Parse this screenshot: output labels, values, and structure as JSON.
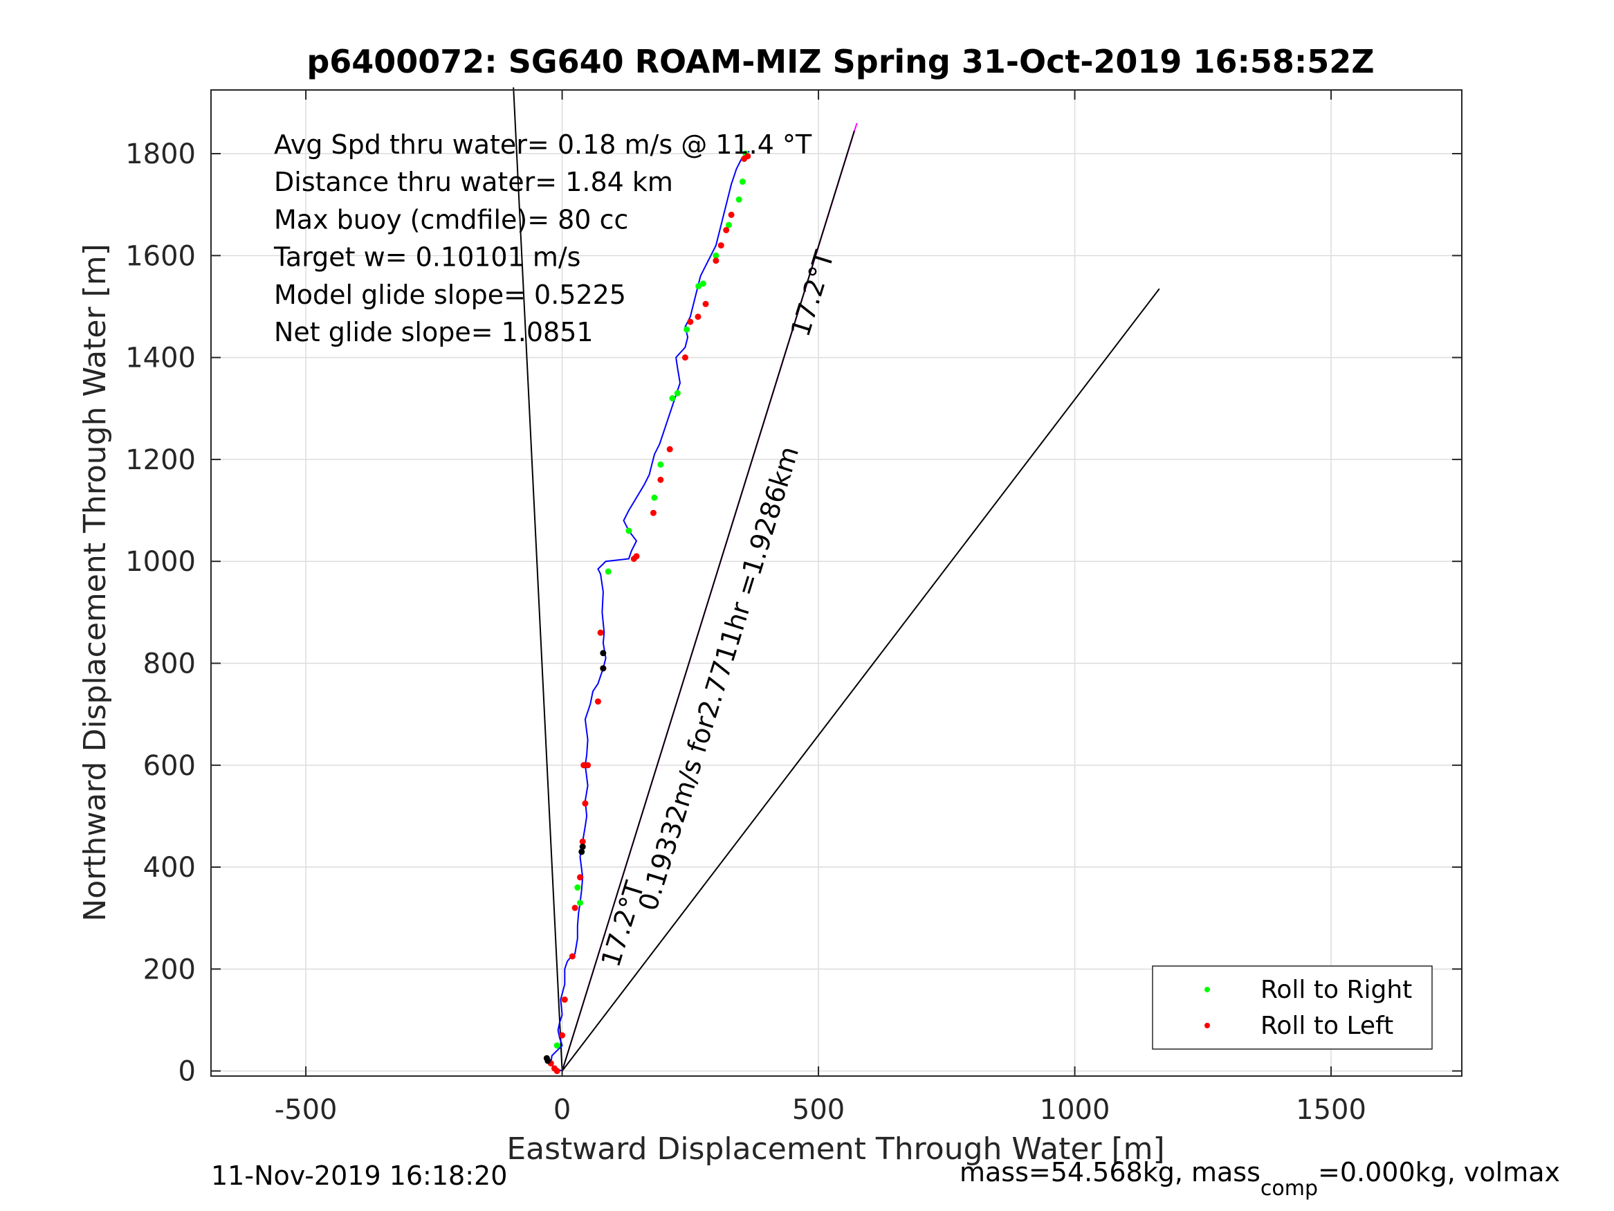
{
  "chart_data": {
    "type": "line",
    "title": "p6400072: SG640 ROAM-MIZ Spring 31-Oct-2019 16:58:52Z",
    "xlabel": "Eastward Displacement Through Water [m]",
    "ylabel": "Northward Displacement Through Water [m]",
    "xlim": [
      -685,
      1755
    ],
    "ylim": [
      -10,
      1925
    ],
    "xticks": [
      -500,
      0,
      500,
      1000,
      1500
    ],
    "yticks": [
      0,
      200,
      400,
      600,
      800,
      1000,
      1200,
      1400,
      1600,
      1800
    ],
    "grid": true,
    "stats": [
      "Avg Spd thru water=  0.18 m/s @  11.4 °T",
      "Distance thru water=  1.84 km",
      "Max buoy (cmdfile)= 80 cc",
      "Target w= 0.10101 m/s",
      "Model glide slope= 0.5225",
      "Net glide slope= 1.0851"
    ],
    "track": {
      "color": "#0000ff",
      "x": [
        0,
        -15,
        -22,
        -20,
        -10,
        0,
        -5,
        -8,
        -5,
        0,
        -3,
        5,
        5,
        10,
        18,
        25,
        30,
        30,
        32,
        35,
        38,
        40,
        35,
        40,
        45,
        48,
        45,
        50,
        45,
        48,
        50,
        45,
        55,
        60,
        70,
        75,
        80,
        85,
        80,
        82,
        78,
        80,
        75,
        70,
        75,
        80,
        85,
        130,
        135,
        145,
        130,
        120,
        130,
        145,
        160,
        170,
        175,
        180,
        190,
        200,
        210,
        220,
        230,
        225,
        222,
        240,
        245,
        240,
        250,
        255,
        260,
        265,
        270,
        280,
        290,
        300,
        305,
        310,
        315,
        320,
        325,
        330,
        335,
        340,
        345,
        350,
        355,
        360,
        365
      ],
      "y": [
        0,
        5,
        15,
        30,
        40,
        50,
        65,
        80,
        95,
        110,
        140,
        170,
        200,
        215,
        225,
        230,
        260,
        285,
        310,
        330,
        355,
        380,
        420,
        450,
        480,
        500,
        530,
        560,
        600,
        620,
        650,
        690,
        720,
        745,
        760,
        775,
        790,
        810,
        840,
        860,
        900,
        940,
        975,
        985,
        990,
        995,
        1000,
        1005,
        1020,
        1040,
        1060,
        1080,
        1100,
        1125,
        1150,
        1170,
        1190,
        1210,
        1230,
        1260,
        1290,
        1320,
        1350,
        1380,
        1400,
        1420,
        1440,
        1460,
        1480,
        1500,
        1520,
        1540,
        1560,
        1580,
        1600,
        1620,
        1640,
        1660,
        1680,
        1700,
        1720,
        1740,
        1755,
        1770,
        1780,
        1790,
        1795,
        1800,
        1805
      ]
    },
    "roll_right_points": {
      "color": "#00ff00",
      "x": [
        -10,
        30,
        35,
        75,
        90,
        130,
        180,
        192,
        215,
        225,
        243,
        266,
        275,
        300,
        325,
        345,
        352,
        355,
        358
      ],
      "y": [
        50,
        360,
        330,
        860,
        980,
        1060,
        1125,
        1190,
        1320,
        1330,
        1455,
        1540,
        1545,
        1600,
        1660,
        1710,
        1745,
        1790,
        1800
      ]
    },
    "roll_left_points": {
      "color": "#ff0000",
      "x": [
        -22,
        -15,
        -10,
        0,
        5,
        20,
        25,
        35,
        40,
        45,
        42,
        50,
        70,
        75,
        80,
        140,
        145,
        178,
        192,
        210,
        240,
        250,
        265,
        280,
        300,
        310,
        320,
        330,
        355,
        362
      ],
      "y": [
        15,
        5,
        0,
        70,
        140,
        225,
        320,
        380,
        450,
        525,
        600,
        600,
        725,
        860,
        790,
        1005,
        1010,
        1095,
        1160,
        1220,
        1400,
        1470,
        1480,
        1505,
        1590,
        1620,
        1650,
        1680,
        1790,
        1795
      ]
    },
    "black_points": {
      "color": "#000000",
      "x": [
        -30,
        -28,
        38,
        40,
        80,
        80
      ],
      "y": [
        25,
        20,
        430,
        440,
        790,
        820
      ]
    },
    "reference_lines": [
      {
        "x": [
          0,
          -95
        ],
        "y": [
          0,
          1930
        ],
        "color": "#000000"
      },
      {
        "x": [
          0,
          575
        ],
        "y": [
          0,
          1860
        ],
        "color": "#ff00ff"
      },
      {
        "x": [
          0,
          570
        ],
        "y": [
          0,
          1845
        ],
        "color": "#000000"
      },
      {
        "x": [
          0,
          1165
        ],
        "y": [
          0,
          1535
        ],
        "color": "#000000"
      }
    ],
    "line_labels": [
      {
        "text": "0.19332m/s for2.7711hr =1.9286km",
        "x": 322,
        "y": 765,
        "rotate": -72.8
      },
      {
        "text": "17.2°T",
        "x": 135,
        "y": 283,
        "rotate": -72.8
      },
      {
        "text": "17.2°T",
        "x": 505,
        "y": 1520,
        "rotate": -72.8
      }
    ],
    "legend": {
      "position": "bottom-right",
      "entries": [
        {
          "label": "Roll to Right",
          "color": "#00ff00"
        },
        {
          "label": "Roll to Left",
          "color": "#ff0000"
        }
      ]
    }
  },
  "footer": {
    "timestamp": "11-Nov-2019 16:18:20",
    "mass_prefix": "mass=54.568kg, mass",
    "mass_sub": "comp",
    "mass_suffix": "=0.000kg, volmax"
  }
}
